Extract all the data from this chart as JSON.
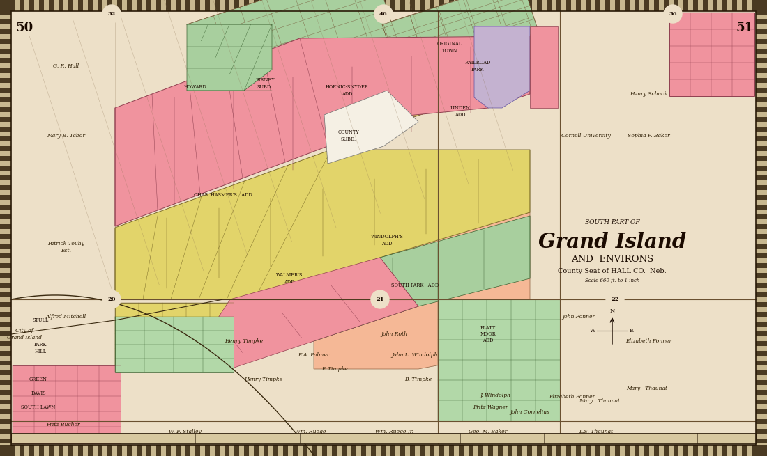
{
  "title_line1": "SOUTH PART OF",
  "title_line2": "Grand Island",
  "title_line3": "AND  ENVIRONS",
  "title_line4": "County Seat of HALL CO.  Neb.",
  "title_line5": "Scale 660 ft. to 1 inch",
  "page_left": "50",
  "page_right": "51",
  "bg_color": "#ede0c8",
  "map_bg": "#ede0c8",
  "colors": {
    "pink": "#f0939e",
    "green": "#a8cf9e",
    "yellow": "#e2d46a",
    "salmon": "#f5b896",
    "lavender": "#c4b2d0",
    "light_green": "#b2d8a8",
    "cream": "#f0e8d0",
    "white_block": "#f5f0e4",
    "tan": "#d8c8a0"
  },
  "figsize": [
    11.0,
    6.55
  ],
  "dpi": 100
}
